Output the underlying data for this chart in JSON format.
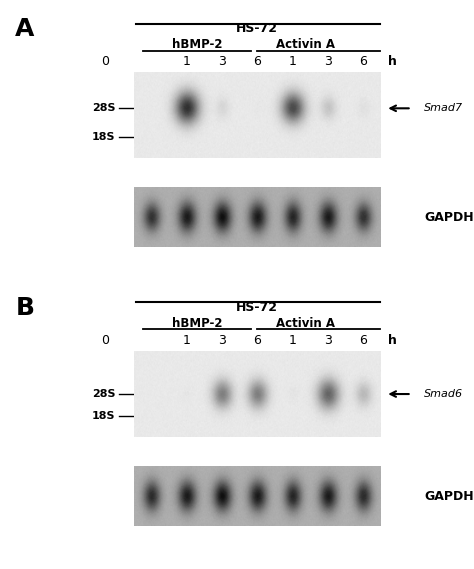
{
  "background_color": "#ffffff",
  "panel_A": {
    "label": "A",
    "title": "HS-72",
    "subtitle1": "hBMP-2",
    "subtitle2": "Activin A",
    "time_labels": [
      "0",
      "1",
      "3",
      "6",
      "1",
      "3",
      "6",
      "h"
    ],
    "s28_label": "28S",
    "s18_label": "18S",
    "smad_label": "Smad7",
    "gapdh_label": "GAPDH",
    "smad7_intensities": [
      0.0,
      0.95,
      0.3,
      0.1,
      0.88,
      0.42,
      0.2
    ],
    "gapdh_intensities_A": [
      0.78,
      0.85,
      0.88,
      0.85,
      0.82,
      0.85,
      0.78
    ],
    "smad7_band_row": 0.38,
    "smad6_band_row": 0.55
  },
  "panel_B": {
    "label": "B",
    "title": "HS-72",
    "subtitle1": "hBMP-2",
    "subtitle2": "Activin A",
    "time_labels": [
      "0",
      "1",
      "3",
      "6",
      "1",
      "3",
      "6",
      "h"
    ],
    "s28_label": "28S",
    "s18_label": "18S",
    "smad_label": "Smad6",
    "gapdh_label": "GAPDH",
    "smad6_intensities": [
      0.0,
      0.12,
      0.72,
      0.72,
      0.15,
      0.8,
      0.48
    ],
    "gapdh_intensities_B": [
      0.8,
      0.85,
      0.88,
      0.85,
      0.82,
      0.85,
      0.8
    ]
  }
}
